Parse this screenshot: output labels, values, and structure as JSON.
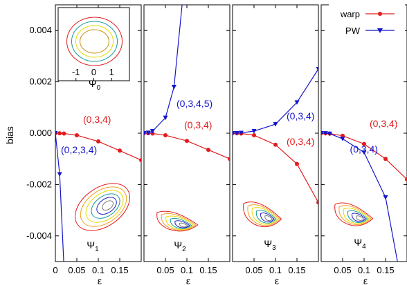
{
  "chart_data": {
    "type": "line",
    "layout": "4 panels side by side, shared y-axis",
    "ylabel": "bias",
    "ylim": [
      -0.005,
      0.005
    ],
    "y_ticks": [
      -0.004,
      -0.002,
      0.0,
      0.002,
      0.004
    ],
    "y_tick_labels": [
      "-0.004",
      "-0.002",
      "0.000",
      "0.002",
      "0.004"
    ],
    "grid": false,
    "legend": {
      "position": "top-right",
      "entries": [
        {
          "label": "warp",
          "color": "#e41a1c",
          "marker": "circle"
        },
        {
          "label": "PW",
          "color": "#1515cc",
          "marker": "triangle-down"
        }
      ]
    },
    "colors": {
      "warp": "#e41a1c",
      "pw": "#1515cc"
    },
    "panels": [
      {
        "name": "Ψ1",
        "psi_base": "Ψ",
        "psi_sub": "1",
        "xlabel": "ε",
        "xlim": [
          0,
          0.2
        ],
        "x_ticks": [
          0,
          0.05,
          0.1,
          0.15
        ],
        "x_tick_labels": [
          "0",
          "0.05",
          "0.1",
          "0.15"
        ],
        "series": [
          {
            "name": "warp",
            "label": "(0,3,4)",
            "x": [
              0,
              0.01,
              0.02,
              0.05,
              0.1,
              0.15,
              0.2
            ],
            "y": [
              0,
              -3e-06,
              -1.2e-05,
              -8e-05,
              -0.00032,
              -0.00068,
              -0.00105
            ]
          },
          {
            "name": "PW",
            "label": "(0,2,3,4)",
            "x": [
              0,
              0.01,
              0.02
            ],
            "y": [
              0,
              -0.0016,
              -0.0052
            ]
          }
        ]
      },
      {
        "name": "Ψ2",
        "psi_base": "Ψ",
        "psi_sub": "2",
        "xlabel": "ε",
        "xlim": [
          0,
          0.2
        ],
        "x_ticks": [
          0.05,
          0.1,
          0.15
        ],
        "x_tick_labels": [
          "0.05",
          "0.1",
          "0.15"
        ],
        "series": [
          {
            "name": "warp",
            "label": "(0,3,4)",
            "x": [
              0,
              0.01,
              0.02,
              0.05,
              0.1,
              0.15,
              0.2
            ],
            "y": [
              0,
              -3e-06,
              -1.2e-05,
              -8e-05,
              -0.0003,
              -0.00065,
              -0.001
            ]
          },
          {
            "name": "PW",
            "label": "(0,3,4,5)",
            "x": [
              0,
              0.01,
              0.02,
              0.05,
              0.07,
              0.09
            ],
            "y": [
              0,
              2e-05,
              8e-05,
              0.0006,
              0.0018,
              0.0052
            ]
          }
        ]
      },
      {
        "name": "Ψ3",
        "psi_base": "Ψ",
        "psi_sub": "3",
        "xlabel": "ε",
        "xlim": [
          0,
          0.2
        ],
        "x_ticks": [
          0.05,
          0.1,
          0.15
        ],
        "x_tick_labels": [
          "0.05",
          "0.1",
          "0.15"
        ],
        "series": [
          {
            "name": "warp",
            "label": "(0,3,4)",
            "x": [
              0,
              0.01,
              0.02,
              0.05,
              0.1,
              0.15,
              0.2
            ],
            "y": [
              0,
              -3e-06,
              -1.2e-05,
              -8e-05,
              -0.00045,
              -0.0012,
              -0.0027
            ]
          },
          {
            "name": "PW",
            "label": "(0,3,4)",
            "x": [
              0,
              0.01,
              0.02,
              0.05,
              0.1,
              0.15,
              0.2
            ],
            "y": [
              0,
              3e-06,
              1.2e-05,
              8e-05,
              0.00035,
              0.0012,
              0.0025
            ]
          }
        ]
      },
      {
        "name": "Ψ4",
        "psi_base": "Ψ",
        "psi_sub": "4",
        "xlabel": "ε",
        "xlim": [
          0,
          0.2
        ],
        "x_ticks": [
          0.05,
          0.1,
          0.15
        ],
        "x_tick_labels": [
          "0.05",
          "0.1",
          "0.15"
        ],
        "series": [
          {
            "name": "warp",
            "label": "(0,3,4)",
            "x": [
              0,
              0.01,
              0.02,
              0.05,
              0.1,
              0.15,
              0.2
            ],
            "y": [
              0,
              -4e-06,
              -1.6e-05,
              -0.0001,
              -0.00042,
              -0.001,
              -0.0018
            ]
          },
          {
            "name": "PW",
            "label": "(0,3,4)",
            "x": [
              0,
              0.01,
              0.02,
              0.05,
              0.1,
              0.15,
              0.18
            ],
            "y": [
              0,
              -5e-06,
              -2e-05,
              -0.00022,
              -0.00075,
              -0.0025,
              -0.0052
            ]
          }
        ]
      }
    ],
    "inset": {
      "label_base": "Ψ",
      "label_sub": "0",
      "xlim": [
        -2,
        2
      ],
      "x_ticks": [
        -1,
        0,
        1
      ],
      "x_tick_labels": [
        "-1",
        "0",
        "1"
      ]
    }
  }
}
